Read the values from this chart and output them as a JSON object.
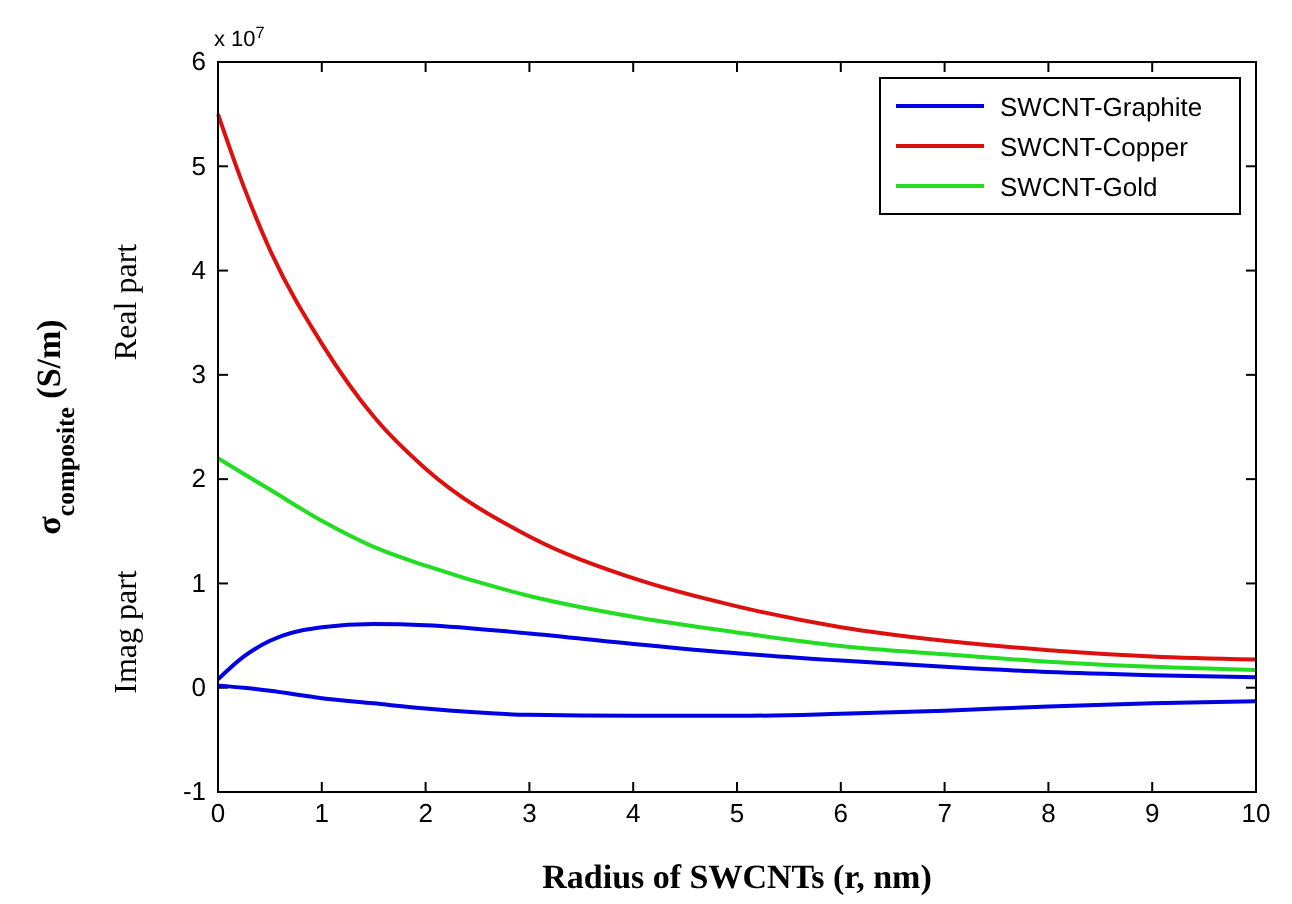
{
  "chart_data": {
    "type": "line",
    "xlabel": "Radius of SWCNTs (r, nm)",
    "ylabel": "σ$_{composite}$ (S/m)",
    "annotations": [
      "x 10$^{7}$",
      "Real part",
      "Imag part"
    ],
    "x": [
      0,
      0.25,
      0.5,
      1,
      1.5,
      2,
      3,
      4,
      5,
      6,
      7,
      8,
      9,
      10
    ],
    "series": [
      {
        "name": "SWCNT-Graphite",
        "color": "#0000e0",
        "values": [
          0.08,
          0.3,
          0.45,
          0.58,
          0.61,
          0.6,
          0.52,
          0.42,
          0.33,
          0.26,
          0.2,
          0.15,
          0.12,
          0.1
        ]
      },
      {
        "name": "SWCNT-Copper",
        "color": "#dd1010",
        "values": [
          5.5,
          4.8,
          4.2,
          3.3,
          2.6,
          2.1,
          1.45,
          1.05,
          0.78,
          0.58,
          0.45,
          0.36,
          0.3,
          0.27
        ]
      },
      {
        "name": "SWCNT-Gold",
        "color": "#22dd22",
        "values": [
          2.2,
          2.05,
          1.9,
          1.6,
          1.35,
          1.17,
          0.88,
          0.68,
          0.53,
          0.4,
          0.32,
          0.25,
          0.2,
          0.17
        ]
      },
      {
        "color": "#0000e0",
        "values": [
          0.02,
          0,
          -0.03,
          -0.1,
          -0.15,
          -0.2,
          -0.26,
          -0.27,
          -0.27,
          -0.25,
          -0.22,
          -0.18,
          -0.15,
          -0.13
        ]
      }
    ],
    "xlim": [
      0,
      10
    ],
    "ylim": [
      -1,
      6
    ],
    "xticks": [
      0,
      1,
      2,
      3,
      4,
      5,
      6,
      7,
      8,
      9,
      10
    ],
    "yticks": [
      -1,
      0,
      1,
      2,
      3,
      4,
      5,
      6
    ],
    "legend": "top right",
    "grid": false,
    "line_style": "solid"
  }
}
